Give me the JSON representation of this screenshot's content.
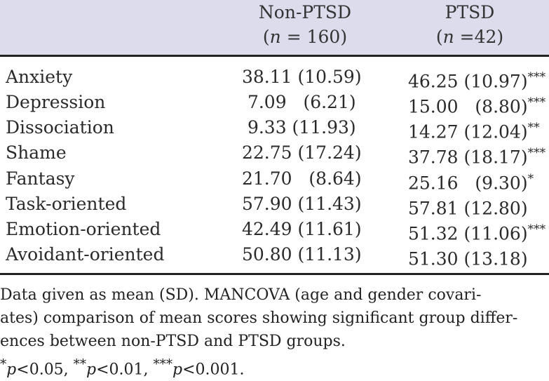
{
  "header": {
    "col1_title": "Non-PTSD",
    "col1_n_label": "n",
    "col1_n_value": " = 160)",
    "col2_title": "PTSD",
    "col2_n_label": "n",
    "col2_n_value": " =42)"
  },
  "rows": [
    {
      "label": "Anxiety",
      "non_ptsd": "38.11 (10.59)",
      "ptsd": "46.25 (10.97)",
      "sig": "***"
    },
    {
      "label": "Depression",
      "non_ptsd": " 7.09   (6.21)",
      "ptsd": "15.00   (8.80)",
      "sig": "***"
    },
    {
      "label": "Dissociation",
      "non_ptsd": " 9.33 (11.93)",
      "ptsd": "14.27 (12.04)",
      "sig": "**"
    },
    {
      "label": "Shame",
      "non_ptsd": "22.75 (17.24)",
      "ptsd": "37.78 (18.17)",
      "sig": "***"
    },
    {
      "label": "Fantasy",
      "non_ptsd": "21.70   (8.64)",
      "ptsd": "25.16   (9.30)",
      "sig": "*"
    },
    {
      "label": "Task-oriented",
      "non_ptsd": "57.90 (11.43)",
      "ptsd": "57.81 (12.80)",
      "sig": ""
    },
    {
      "label": "Emotion-oriented",
      "non_ptsd": "42.49 (11.61)",
      "ptsd": "51.32 (11.06)",
      "sig": "***"
    },
    {
      "label": "Avoidant-oriented",
      "non_ptsd": "50.80 (11.13)",
      "ptsd": "51.30 (13.18)",
      "sig": ""
    }
  ],
  "note": {
    "line1": "Data given as mean (SD). MANCOVA (age and gender covari-",
    "line2": "ates) comparison of mean scores showing significant group differ-",
    "line3": "ences between non-PTSD and PTSD groups.",
    "sig1_mark": "*",
    "sig1_p": "p",
    "sig1_text": "<0.05, ",
    "sig2_mark": "**",
    "sig2_p": "p",
    "sig2_text": "<0.01, ",
    "sig3_mark": "***",
    "sig3_p": "p",
    "sig3_text": "<0.001."
  }
}
